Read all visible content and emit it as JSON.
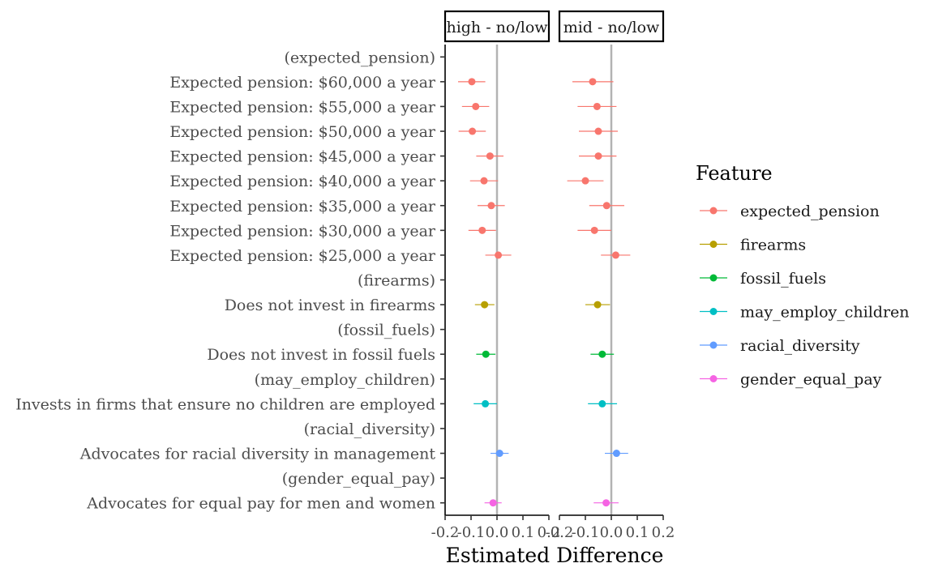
{
  "chart_data": {
    "type": "scatter",
    "subtype": "coefficient-plot with error bars, faceted",
    "xlabel": "Estimated Difference",
    "ylabel": "",
    "xlim": [
      -0.2,
      0.2
    ],
    "x_ticks": [
      -0.2,
      -0.1,
      0.0,
      0.1,
      0.2
    ],
    "x_tick_labels": [
      "-0.2",
      "-0.1",
      "0.0",
      "0.1",
      "0.2"
    ],
    "reference_line": 0.0,
    "grid": false,
    "legend_position": "right",
    "legend_title": "Feature",
    "categories": [
      "(expected_pension)",
      "Expected pension: $60,000 a year",
      "Expected pension: $55,000 a year",
      "Expected pension: $50,000 a year",
      "Expected pension: $45,000 a year",
      "Expected pension: $40,000 a year",
      "Expected pension: $35,000 a year",
      "Expected pension: $30,000 a year",
      "Expected pension: $25,000 a year",
      "(firearms)",
      "Does not invest in firearms",
      "(fossil_fuels)",
      "Does not invest in fossil fuels",
      "(may_employ_children)",
      "Invests in firms that ensure no children are employed",
      "(racial_diversity)",
      "Advocates for racial diversity in management",
      "(gender_equal_pay)",
      "Advocates for equal pay for men and women"
    ],
    "series": [
      {
        "name": "expected_pension",
        "color": "#F8766D"
      },
      {
        "name": "firearms",
        "color": "#B79F00"
      },
      {
        "name": "fossil_fuels",
        "color": "#00BA38"
      },
      {
        "name": "may_employ_children",
        "color": "#00BFC4"
      },
      {
        "name": "racial_diversity",
        "color": "#619CFF"
      },
      {
        "name": "gender_equal_pay",
        "color": "#F564E3"
      }
    ],
    "facets": [
      {
        "label": "high - no/low",
        "points": [
          {
            "category": "Expected pension: $60,000 a year",
            "feature": "expected_pension",
            "estimate": -0.097,
            "lower": -0.15,
            "upper": -0.045
          },
          {
            "category": "Expected pension: $55,000 a year",
            "feature": "expected_pension",
            "estimate": -0.082,
            "lower": -0.135,
            "upper": -0.03
          },
          {
            "category": "Expected pension: $50,000 a year",
            "feature": "expected_pension",
            "estimate": -0.095,
            "lower": -0.148,
            "upper": -0.043
          },
          {
            "category": "Expected pension: $45,000 a year",
            "feature": "expected_pension",
            "estimate": -0.027,
            "lower": -0.08,
            "upper": 0.025
          },
          {
            "category": "Expected pension: $40,000 a year",
            "feature": "expected_pension",
            "estimate": -0.05,
            "lower": -0.104,
            "upper": 0.004
          },
          {
            "category": "Expected pension: $35,000 a year",
            "feature": "expected_pension",
            "estimate": -0.022,
            "lower": -0.075,
            "upper": 0.03
          },
          {
            "category": "Expected pension: $30,000 a year",
            "feature": "expected_pension",
            "estimate": -0.057,
            "lower": -0.11,
            "upper": -0.004
          },
          {
            "category": "Expected pension: $25,000 a year",
            "feature": "expected_pension",
            "estimate": 0.005,
            "lower": -0.045,
            "upper": 0.055
          },
          {
            "category": "Does not invest in firearms",
            "feature": "firearms",
            "estimate": -0.048,
            "lower": -0.085,
            "upper": -0.01
          },
          {
            "category": "Does not invest in fossil fuels",
            "feature": "fossil_fuels",
            "estimate": -0.043,
            "lower": -0.08,
            "upper": -0.006
          },
          {
            "category": "Invests in firms that ensure no children are employed",
            "feature": "may_employ_children",
            "estimate": -0.045,
            "lower": -0.09,
            "upper": 0.0
          },
          {
            "category": "Advocates for racial diversity in management",
            "feature": "racial_diversity",
            "estimate": 0.01,
            "lower": -0.025,
            "upper": 0.045
          },
          {
            "category": "Advocates for equal pay for men and women",
            "feature": "gender_equal_pay",
            "estimate": -0.015,
            "lower": -0.048,
            "upper": 0.018
          }
        ]
      },
      {
        "label": "mid - no/low",
        "points": [
          {
            "category": "Expected pension: $60,000 a year",
            "feature": "expected_pension",
            "estimate": -0.072,
            "lower": -0.15,
            "upper": 0.008
          },
          {
            "category": "Expected pension: $55,000 a year",
            "feature": "expected_pension",
            "estimate": -0.055,
            "lower": -0.13,
            "upper": 0.02
          },
          {
            "category": "Expected pension: $50,000 a year",
            "feature": "expected_pension",
            "estimate": -0.05,
            "lower": -0.125,
            "upper": 0.025
          },
          {
            "category": "Expected pension: $45,000 a year",
            "feature": "expected_pension",
            "estimate": -0.05,
            "lower": -0.125,
            "upper": 0.02
          },
          {
            "category": "Expected pension: $40,000 a year",
            "feature": "expected_pension",
            "estimate": -0.1,
            "lower": -0.17,
            "upper": -0.03
          },
          {
            "category": "Expected pension: $35,000 a year",
            "feature": "expected_pension",
            "estimate": -0.018,
            "lower": -0.085,
            "upper": 0.05
          },
          {
            "category": "Expected pension: $30,000 a year",
            "feature": "expected_pension",
            "estimate": -0.065,
            "lower": -0.13,
            "upper": 0.0
          },
          {
            "category": "Expected pension: $25,000 a year",
            "feature": "expected_pension",
            "estimate": 0.017,
            "lower": -0.04,
            "upper": 0.073
          },
          {
            "category": "Does not invest in firearms",
            "feature": "firearms",
            "estimate": -0.053,
            "lower": -0.1,
            "upper": -0.005
          },
          {
            "category": "Does not invest in fossil fuels",
            "feature": "fossil_fuels",
            "estimate": -0.035,
            "lower": -0.08,
            "upper": 0.01
          },
          {
            "category": "Invests in firms that ensure no children are employed",
            "feature": "may_employ_children",
            "estimate": -0.035,
            "lower": -0.09,
            "upper": 0.022
          },
          {
            "category": "Advocates for racial diversity in management",
            "feature": "racial_diversity",
            "estimate": 0.02,
            "lower": -0.025,
            "upper": 0.065
          },
          {
            "category": "Advocates for equal pay for men and women",
            "feature": "gender_equal_pay",
            "estimate": -0.02,
            "lower": -0.068,
            "upper": 0.028
          }
        ]
      }
    ]
  }
}
